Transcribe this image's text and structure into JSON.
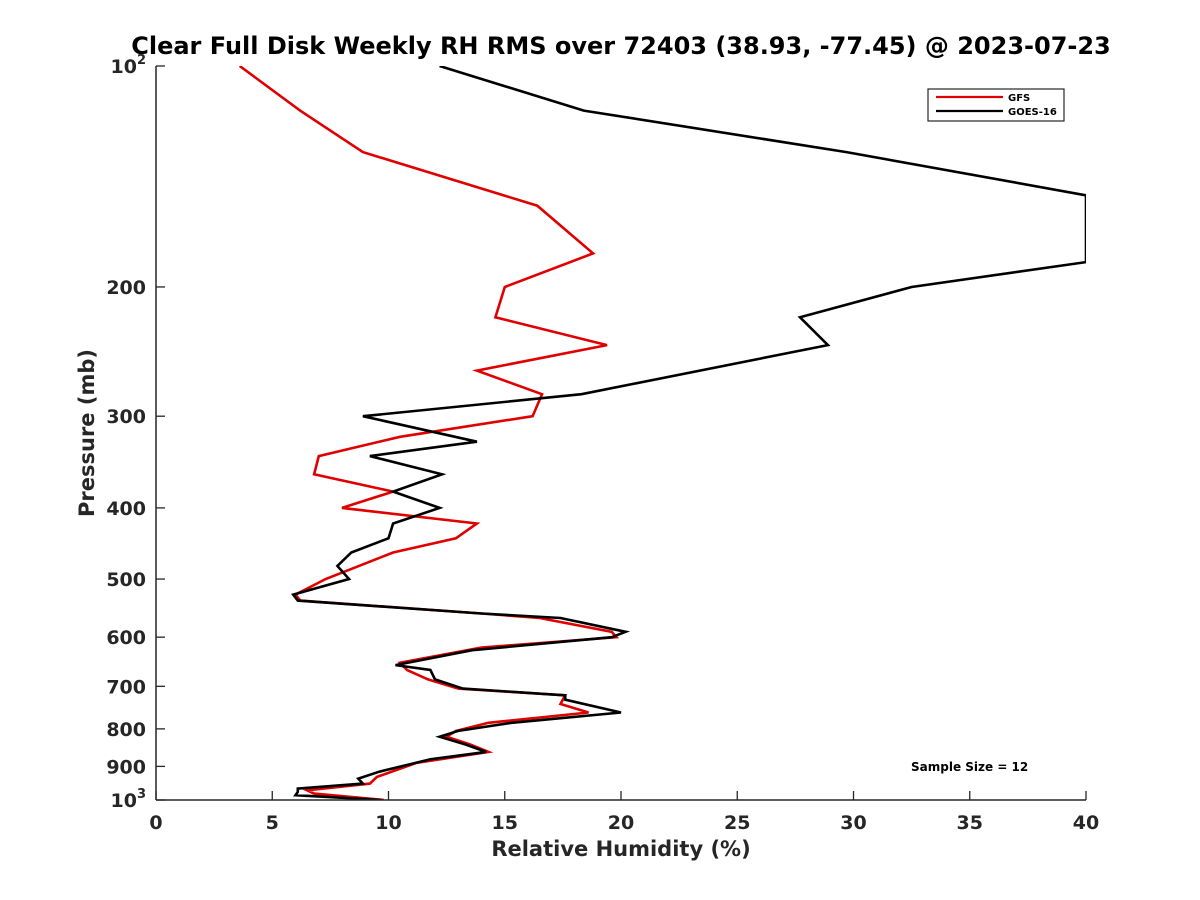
{
  "chart_data": {
    "type": "line",
    "title": "Clear Full Disk Weekly RH RMS over 72403 (38.93, -77.45) @ 2023-07-23",
    "xlabel": "Relative Humidity (%)",
    "ylabel": "Pressure (mb)",
    "xlim": [
      0,
      40
    ],
    "ylim": [
      100,
      1000
    ],
    "y_scale": "log",
    "y_reversed": true,
    "grid": false,
    "legend_position": "top-right",
    "x_ticks": [
      "0",
      "5",
      "10",
      "15",
      "20",
      "25",
      "30",
      "35",
      "40"
    ],
    "y_ticks": [
      {
        "value": 100,
        "base": "10",
        "exp": "2"
      },
      {
        "value": 200,
        "label": "200"
      },
      {
        "value": 300,
        "label": "300"
      },
      {
        "value": 400,
        "label": "400"
      },
      {
        "value": 500,
        "label": "500"
      },
      {
        "value": 600,
        "label": "600"
      },
      {
        "value": 700,
        "label": "700"
      },
      {
        "value": 800,
        "label": "800"
      },
      {
        "value": 900,
        "label": "900"
      },
      {
        "value": 1000,
        "base": "10",
        "exp": "3"
      }
    ],
    "annotation": "Sample Size = 12",
    "series": [
      {
        "name": "GFS",
        "color": "#e00000",
        "points": [
          [
            3.6,
            100
          ],
          [
            6.2,
            115
          ],
          [
            8.9,
            131
          ],
          [
            16.4,
            155
          ],
          [
            18.8,
            180
          ],
          [
            15.0,
            200
          ],
          [
            14.6,
            220
          ],
          [
            19.4,
            240
          ],
          [
            13.8,
            260
          ],
          [
            16.6,
            280
          ],
          [
            16.2,
            300
          ],
          [
            10.5,
            320
          ],
          [
            7.0,
            340
          ],
          [
            6.8,
            360
          ],
          [
            10.2,
            380
          ],
          [
            8.0,
            400
          ],
          [
            13.8,
            420
          ],
          [
            12.9,
            440
          ],
          [
            10.2,
            460
          ],
          [
            7.3,
            500
          ],
          [
            6.0,
            525
          ],
          [
            6.2,
            535
          ],
          [
            14.0,
            557
          ],
          [
            16.5,
            565
          ],
          [
            19.6,
            590
          ],
          [
            19.8,
            600
          ],
          [
            14.0,
            620
          ],
          [
            10.5,
            650
          ],
          [
            10.8,
            665
          ],
          [
            11.7,
            685
          ],
          [
            13.0,
            705
          ],
          [
            17.6,
            720
          ],
          [
            17.4,
            740
          ],
          [
            18.6,
            760
          ],
          [
            14.3,
            785
          ],
          [
            12.9,
            805
          ],
          [
            12.5,
            820
          ],
          [
            13.5,
            840
          ],
          [
            14.3,
            860
          ],
          [
            11.2,
            890
          ],
          [
            9.5,
            930
          ],
          [
            9.2,
            950
          ],
          [
            6.5,
            970
          ],
          [
            6.8,
            980
          ],
          [
            9.8,
            1000
          ]
        ]
      },
      {
        "name": "GOES-16",
        "color": "#000000",
        "points": [
          [
            12.2,
            100
          ],
          [
            18.4,
            115
          ],
          [
            29.7,
            131
          ],
          [
            40.0,
            150
          ],
          [
            40.0,
            185
          ],
          [
            32.5,
            200
          ],
          [
            27.7,
            220
          ],
          [
            28.9,
            240
          ],
          [
            18.3,
            280
          ],
          [
            8.9,
            300
          ],
          [
            13.8,
            325
          ],
          [
            9.2,
            340
          ],
          [
            12.3,
            360
          ],
          [
            10.2,
            380
          ],
          [
            12.2,
            400
          ],
          [
            10.2,
            420
          ],
          [
            10.0,
            440
          ],
          [
            8.4,
            460
          ],
          [
            7.8,
            480
          ],
          [
            8.3,
            500
          ],
          [
            5.9,
            525
          ],
          [
            6.1,
            535
          ],
          [
            14.0,
            557
          ],
          [
            17.4,
            565
          ],
          [
            20.2,
            590
          ],
          [
            19.6,
            600
          ],
          [
            13.6,
            625
          ],
          [
            10.3,
            655
          ],
          [
            11.8,
            665
          ],
          [
            12.0,
            685
          ],
          [
            13.2,
            705
          ],
          [
            17.6,
            720
          ],
          [
            17.6,
            730
          ],
          [
            20.0,
            760
          ],
          [
            15.3,
            785
          ],
          [
            13.0,
            805
          ],
          [
            12.2,
            820
          ],
          [
            13.3,
            840
          ],
          [
            14.2,
            860
          ],
          [
            11.8,
            880
          ],
          [
            9.6,
            915
          ],
          [
            8.7,
            935
          ],
          [
            8.9,
            950
          ],
          [
            6.1,
            965
          ],
          [
            6.1,
            975
          ],
          [
            6.0,
            985
          ],
          [
            9.7,
            1000
          ]
        ]
      }
    ]
  }
}
